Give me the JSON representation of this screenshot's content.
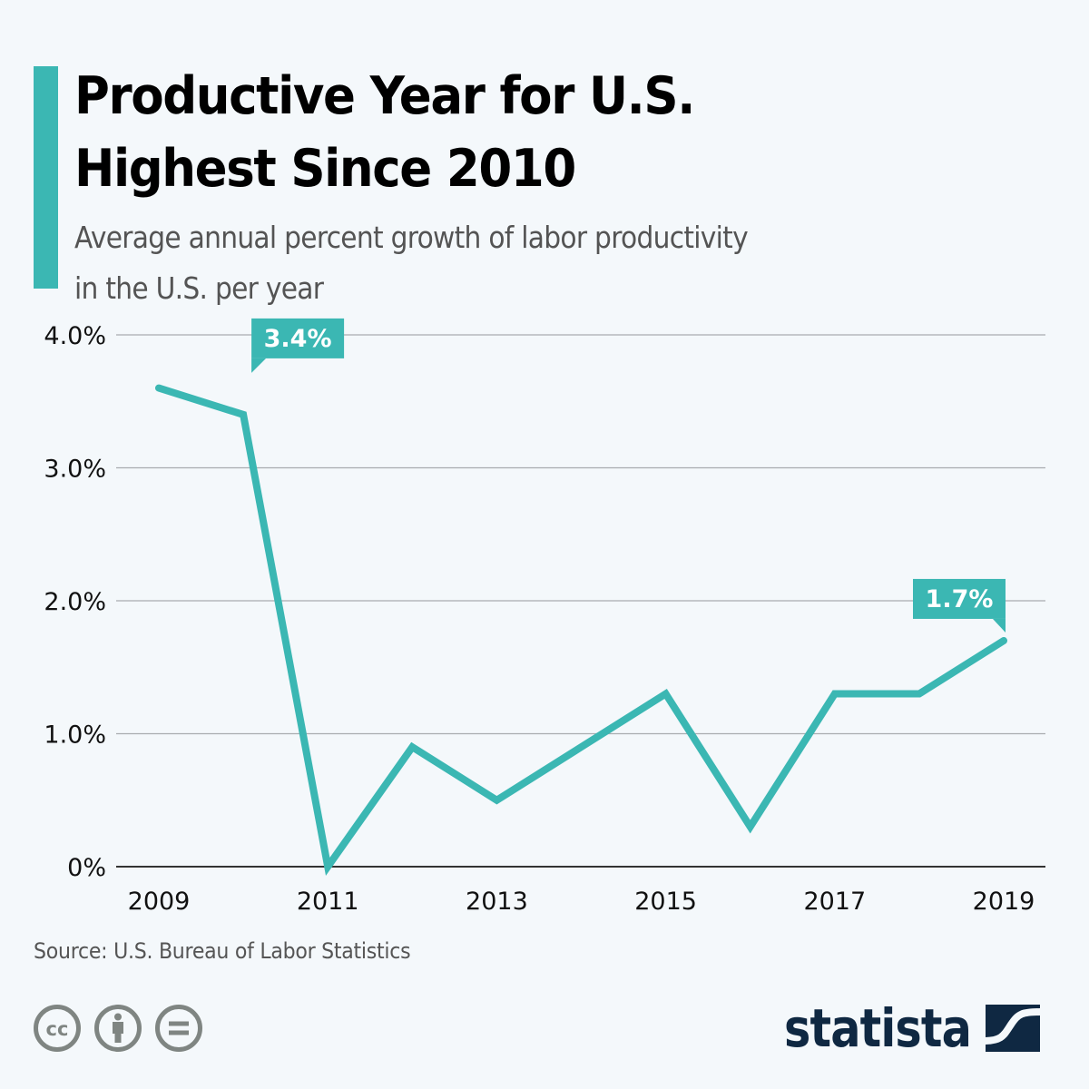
{
  "header": {
    "title_line1": "Productive Year for U.S.",
    "title_line2": "Highest Since 2010",
    "subtitle_line1": "Average annual percent growth of labor productivity",
    "subtitle_line2": "in the U.S. per year"
  },
  "colors": {
    "accent": "#3bb7b3",
    "brand": "#0f2842",
    "gridline": "#a9acaf",
    "background": "#f4f8fb"
  },
  "chart_data": {
    "type": "line",
    "title": "Productive Year for U.S. Highest Since 2010",
    "subtitle": "Average annual percent growth of labor productivity in the U.S. per year",
    "xlabel": "",
    "ylabel": "",
    "x": [
      2009,
      2010,
      2011,
      2012,
      2013,
      2014,
      2015,
      2016,
      2017,
      2018,
      2019
    ],
    "series": [
      {
        "name": "Labor productivity growth (%)",
        "values": [
          3.6,
          3.4,
          0.0,
          0.9,
          0.5,
          0.9,
          1.3,
          0.3,
          1.3,
          1.3,
          1.7
        ]
      }
    ],
    "ylim": [
      0,
      4.0
    ],
    "yticks": [
      0,
      1.0,
      2.0,
      3.0,
      4.0
    ],
    "ytick_labels": [
      "0%",
      "1.0%",
      "2.0%",
      "3.0%",
      "4.0%"
    ],
    "xticks": [
      2009,
      2011,
      2013,
      2015,
      2017,
      2019
    ],
    "xtick_labels": [
      "2009",
      "2011",
      "2013",
      "2015",
      "2017",
      "2019"
    ],
    "grid": true,
    "legend": "none",
    "annotations": [
      {
        "x": 2010,
        "value": 3.4,
        "label": "3.4%"
      },
      {
        "x": 2019,
        "value": 1.7,
        "label": "1.7%"
      }
    ]
  },
  "footer": {
    "source": "Source: U.S. Bureau of Labor Statistics",
    "license_icons": [
      "cc-icon",
      "attribution-icon",
      "no-derivatives-icon"
    ],
    "brand": "statista"
  }
}
